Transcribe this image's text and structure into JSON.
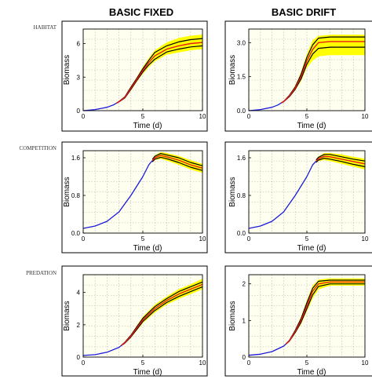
{
  "headers": {
    "left": "BASIC FIXED",
    "right": "BASIC DRIFT"
  },
  "row_labels": [
    "HABITAT",
    "COMPETITION",
    "PREDATION"
  ],
  "colors": {
    "frame": "#000000",
    "plot_background": "#fffff0",
    "grid": "#b4b4b4",
    "mean_line": "#e81a1a",
    "bound_line": "#000000",
    "uncertainty_band": "#ffff00",
    "early_line": "#1a1adc"
  },
  "chart_data": [
    {
      "type": "line",
      "panel": "row1-fixed",
      "xlabel": "Time (d)",
      "ylabel": "Biomass",
      "xlim": [
        0,
        10
      ],
      "ylim": [
        0,
        7.3
      ],
      "xticks": [
        0,
        5,
        10
      ],
      "yticks": [
        0,
        3,
        6
      ],
      "grid": true,
      "split_x": 2.8,
      "x": [
        0,
        1,
        2,
        2.5,
        3,
        3.5,
        4,
        4.5,
        5,
        5.5,
        6,
        7,
        8,
        9,
        10
      ],
      "series": [
        {
          "values": [
            0,
            0.1,
            0.3,
            0.5,
            0.8,
            1.2,
            2.0,
            2.8,
            3.6,
            4.3,
            4.9,
            5.5,
            5.8,
            6.0,
            6.1
          ]
        }
      ],
      "band": {
        "lower": [
          0,
          0.1,
          0.3,
          0.5,
          0.75,
          1.1,
          1.8,
          2.6,
          3.3,
          3.9,
          4.4,
          5.0,
          5.2,
          5.4,
          5.5
        ],
        "upper": [
          0,
          0.1,
          0.3,
          0.5,
          0.85,
          1.3,
          2.2,
          3.0,
          3.9,
          4.7,
          5.4,
          6.1,
          6.5,
          6.7,
          6.8
        ],
        "inner_lower": [
          0,
          0.1,
          0.3,
          0.5,
          0.78,
          1.15,
          1.9,
          2.7,
          3.45,
          4.1,
          4.6,
          5.25,
          5.5,
          5.7,
          5.8
        ],
        "inner_upper": [
          0,
          0.1,
          0.3,
          0.5,
          0.82,
          1.25,
          2.1,
          2.9,
          3.75,
          4.5,
          5.2,
          5.8,
          6.15,
          6.35,
          6.45
        ]
      }
    },
    {
      "type": "line",
      "panel": "row1-drift",
      "xlabel": "Time (d)",
      "ylabel": "Biomass",
      "xlim": [
        0,
        10
      ],
      "ylim": [
        0,
        3.6
      ],
      "xticks": [
        0,
        5,
        10
      ],
      "yticks": [
        0,
        1.5,
        3.0
      ],
      "grid": true,
      "split_x": 2.8,
      "x": [
        0,
        1,
        2,
        2.5,
        3,
        3.5,
        4,
        4.5,
        5,
        5.5,
        6,
        7,
        8,
        9,
        10
      ],
      "series": [
        {
          "values": [
            0,
            0.05,
            0.15,
            0.25,
            0.4,
            0.65,
            1.0,
            1.5,
            2.2,
            2.7,
            3.0,
            3.05,
            3.05,
            3.05,
            3.05
          ]
        }
      ],
      "band": {
        "lower": [
          0,
          0.05,
          0.15,
          0.25,
          0.38,
          0.6,
          0.9,
          1.3,
          1.9,
          2.2,
          2.4,
          2.45,
          2.45,
          2.45,
          2.45
        ],
        "upper": [
          0,
          0.05,
          0.15,
          0.25,
          0.42,
          0.7,
          1.1,
          1.7,
          2.5,
          3.1,
          3.3,
          3.35,
          3.35,
          3.35,
          3.35
        ],
        "inner_lower": [
          0,
          0.05,
          0.15,
          0.25,
          0.39,
          0.62,
          0.95,
          1.4,
          2.05,
          2.5,
          2.75,
          2.8,
          2.8,
          2.8,
          2.8
        ],
        "inner_upper": [
          0,
          0.05,
          0.15,
          0.25,
          0.41,
          0.68,
          1.05,
          1.6,
          2.35,
          2.9,
          3.2,
          3.25,
          3.25,
          3.25,
          3.25
        ]
      }
    },
    {
      "type": "line",
      "panel": "row2-fixed",
      "xlabel": "Time (d)",
      "ylabel": "Biomass",
      "xlim": [
        0,
        10
      ],
      "ylim": [
        0,
        1.75
      ],
      "xticks": [
        0,
        5,
        10
      ],
      "yticks": [
        0,
        0.8,
        1.6
      ],
      "grid": true,
      "split_x": 5.8,
      "x": [
        0,
        1,
        2,
        3,
        4,
        5,
        5.5,
        6,
        6.5,
        7,
        8,
        9,
        10
      ],
      "series": [
        {
          "values": [
            0.1,
            0.15,
            0.25,
            0.45,
            0.8,
            1.2,
            1.45,
            1.6,
            1.65,
            1.62,
            1.55,
            1.45,
            1.38
          ]
        }
      ],
      "band": {
        "lower": [
          0.1,
          0.15,
          0.25,
          0.45,
          0.8,
          1.2,
          1.42,
          1.55,
          1.58,
          1.54,
          1.45,
          1.35,
          1.28
        ],
        "upper": [
          0.1,
          0.15,
          0.25,
          0.45,
          0.8,
          1.2,
          1.48,
          1.65,
          1.72,
          1.7,
          1.64,
          1.55,
          1.47
        ],
        "inner_lower": [
          0.1,
          0.15,
          0.25,
          0.45,
          0.8,
          1.2,
          1.43,
          1.57,
          1.61,
          1.58,
          1.5,
          1.4,
          1.33
        ],
        "inner_upper": [
          0.1,
          0.15,
          0.25,
          0.45,
          0.8,
          1.2,
          1.47,
          1.63,
          1.69,
          1.66,
          1.6,
          1.5,
          1.43
        ]
      }
    },
    {
      "type": "line",
      "panel": "row2-drift",
      "xlabel": "Time (d)",
      "ylabel": "Biomass",
      "xlim": [
        0,
        10
      ],
      "ylim": [
        0,
        1.75
      ],
      "xticks": [
        0,
        5,
        10
      ],
      "yticks": [
        0,
        0.8,
        1.6
      ],
      "grid": true,
      "split_x": 5.8,
      "x": [
        0,
        1,
        2,
        3,
        4,
        5,
        5.5,
        6,
        6.5,
        7,
        8,
        9,
        10
      ],
      "series": [
        {
          "values": [
            0.1,
            0.15,
            0.25,
            0.45,
            0.8,
            1.2,
            1.45,
            1.58,
            1.63,
            1.62,
            1.57,
            1.52,
            1.47
          ]
        }
      ],
      "band": {
        "lower": [
          0.1,
          0.15,
          0.25,
          0.45,
          0.8,
          1.2,
          1.42,
          1.53,
          1.55,
          1.53,
          1.47,
          1.41,
          1.35
        ],
        "upper": [
          0.1,
          0.15,
          0.25,
          0.45,
          0.8,
          1.2,
          1.48,
          1.63,
          1.7,
          1.7,
          1.67,
          1.62,
          1.58
        ],
        "inner_lower": [
          0.1,
          0.15,
          0.25,
          0.45,
          0.8,
          1.2,
          1.43,
          1.55,
          1.59,
          1.57,
          1.52,
          1.46,
          1.41
        ],
        "inner_upper": [
          0.1,
          0.15,
          0.25,
          0.45,
          0.8,
          1.2,
          1.47,
          1.61,
          1.67,
          1.67,
          1.62,
          1.57,
          1.53
        ]
      }
    },
    {
      "type": "line",
      "panel": "row3-fixed",
      "xlabel": "Time (d)",
      "ylabel": "Biomass",
      "xlim": [
        0,
        10
      ],
      "ylim": [
        0,
        5.1
      ],
      "xticks": [
        0,
        5,
        10
      ],
      "yticks": [
        0,
        2,
        4
      ],
      "grid": true,
      "split_x": 3.2,
      "x": [
        0,
        1,
        2,
        3,
        3.5,
        4,
        4.5,
        5,
        6,
        7,
        8,
        9,
        10
      ],
      "series": [
        {
          "values": [
            0.1,
            0.15,
            0.3,
            0.6,
            0.9,
            1.3,
            1.8,
            2.3,
            3.0,
            3.5,
            3.9,
            4.2,
            4.5
          ]
        }
      ],
      "band": {
        "lower": [
          0.1,
          0.15,
          0.3,
          0.6,
          0.85,
          1.2,
          1.65,
          2.1,
          2.75,
          3.25,
          3.6,
          3.9,
          4.2
        ],
        "upper": [
          0.1,
          0.15,
          0.3,
          0.6,
          0.95,
          1.4,
          1.95,
          2.5,
          3.25,
          3.75,
          4.2,
          4.5,
          4.85
        ],
        "inner_lower": [
          0.1,
          0.15,
          0.3,
          0.6,
          0.87,
          1.25,
          1.72,
          2.2,
          2.88,
          3.38,
          3.75,
          4.05,
          4.35
        ],
        "inner_upper": [
          0.1,
          0.15,
          0.3,
          0.6,
          0.93,
          1.35,
          1.88,
          2.4,
          3.12,
          3.62,
          4.05,
          4.35,
          4.65
        ]
      }
    },
    {
      "type": "line",
      "panel": "row3-drift",
      "xlabel": "Time (d)",
      "ylabel": "Biomass",
      "xlim": [
        0,
        10
      ],
      "ylim": [
        0,
        2.25
      ],
      "xticks": [
        0,
        5,
        10
      ],
      "yticks": [
        0,
        1,
        2
      ],
      "grid": true,
      "split_x": 3.2,
      "x": [
        0,
        1,
        2,
        3,
        3.5,
        4,
        4.5,
        5,
        5.5,
        6,
        7,
        8,
        9,
        10
      ],
      "series": [
        {
          "values": [
            0.05,
            0.08,
            0.15,
            0.3,
            0.45,
            0.7,
            1.0,
            1.4,
            1.8,
            2.0,
            2.05,
            2.05,
            2.05,
            2.05
          ]
        }
      ],
      "band": {
        "lower": [
          0.05,
          0.08,
          0.15,
          0.3,
          0.43,
          0.65,
          0.9,
          1.25,
          1.6,
          1.85,
          1.95,
          1.95,
          1.95,
          1.95
        ],
        "upper": [
          0.05,
          0.08,
          0.15,
          0.3,
          0.47,
          0.75,
          1.1,
          1.55,
          1.95,
          2.12,
          2.15,
          2.15,
          2.15,
          2.15
        ],
        "inner_lower": [
          0.05,
          0.08,
          0.15,
          0.3,
          0.44,
          0.67,
          0.95,
          1.32,
          1.7,
          1.93,
          2.0,
          2.0,
          2.0,
          2.0
        ],
        "inner_upper": [
          0.05,
          0.08,
          0.15,
          0.3,
          0.46,
          0.73,
          1.05,
          1.48,
          1.88,
          2.07,
          2.1,
          2.1,
          2.1,
          2.1
        ]
      }
    }
  ]
}
